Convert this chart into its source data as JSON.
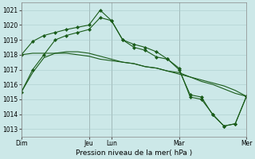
{
  "bg_color": "#cce8e8",
  "grid_color": "#aacccc",
  "line_color": "#1a5c1a",
  "xlabel": "Pression niveau de la mer( hPa )",
  "ylim": [
    1012.5,
    1021.5
  ],
  "yticks": [
    1013,
    1014,
    1015,
    1016,
    1017,
    1018,
    1019,
    1020,
    1021
  ],
  "day_labels": [
    "Dim",
    "Jeu",
    "Lun",
    "Mar",
    "Mer"
  ],
  "day_positions": [
    0,
    72,
    96,
    168,
    240
  ],
  "xlim": [
    0,
    240
  ],
  "lines": [
    {
      "x": [
        0,
        12,
        24,
        36,
        48,
        60,
        72,
        84,
        96,
        108,
        120,
        132,
        144,
        156,
        168,
        180,
        192,
        204,
        216,
        228,
        240
      ],
      "y": [
        1015.5,
        1016.8,
        1017.8,
        1018.1,
        1018.2,
        1018.2,
        1018.1,
        1017.9,
        1017.7,
        1017.5,
        1017.4,
        1017.2,
        1017.1,
        1016.9,
        1016.8,
        1016.5,
        1016.3,
        1016.1,
        1015.9,
        1015.6,
        1015.2
      ],
      "has_markers": false
    },
    {
      "x": [
        0,
        12,
        24,
        36,
        48,
        60,
        72,
        84,
        96,
        108,
        120,
        132,
        144,
        156,
        168,
        180,
        192,
        204,
        216,
        228,
        240
      ],
      "y": [
        1018.0,
        1018.1,
        1018.1,
        1018.1,
        1018.1,
        1018.0,
        1017.9,
        1017.7,
        1017.6,
        1017.5,
        1017.4,
        1017.2,
        1017.1,
        1016.9,
        1016.7,
        1016.5,
        1016.2,
        1016.0,
        1015.7,
        1015.4,
        1015.2
      ],
      "has_markers": false
    },
    {
      "x": [
        0,
        12,
        24,
        36,
        48,
        60,
        72,
        84,
        96,
        108,
        120,
        132,
        144,
        156,
        168,
        180,
        192,
        204,
        216,
        228,
        240
      ],
      "y": [
        1015.5,
        1017.0,
        1018.0,
        1019.0,
        1019.3,
        1019.5,
        1019.7,
        1020.5,
        1020.3,
        1019.0,
        1018.7,
        1018.5,
        1018.2,
        1017.7,
        1017.0,
        1015.3,
        1015.15,
        1013.95,
        1013.2,
        1013.35,
        1015.2
      ],
      "has_markers": true
    },
    {
      "x": [
        0,
        12,
        24,
        36,
        48,
        60,
        72,
        84,
        96,
        108,
        120,
        132,
        144,
        156,
        168,
        180,
        192,
        204,
        216,
        228,
        240
      ],
      "y": [
        1018.0,
        1018.9,
        1019.3,
        1019.5,
        1019.7,
        1019.85,
        1020.0,
        1021.0,
        1020.3,
        1019.0,
        1018.5,
        1018.3,
        1017.85,
        1017.7,
        1017.1,
        1015.15,
        1015.0,
        1014.0,
        1013.2,
        1013.35,
        1015.2
      ],
      "has_markers": true
    }
  ]
}
